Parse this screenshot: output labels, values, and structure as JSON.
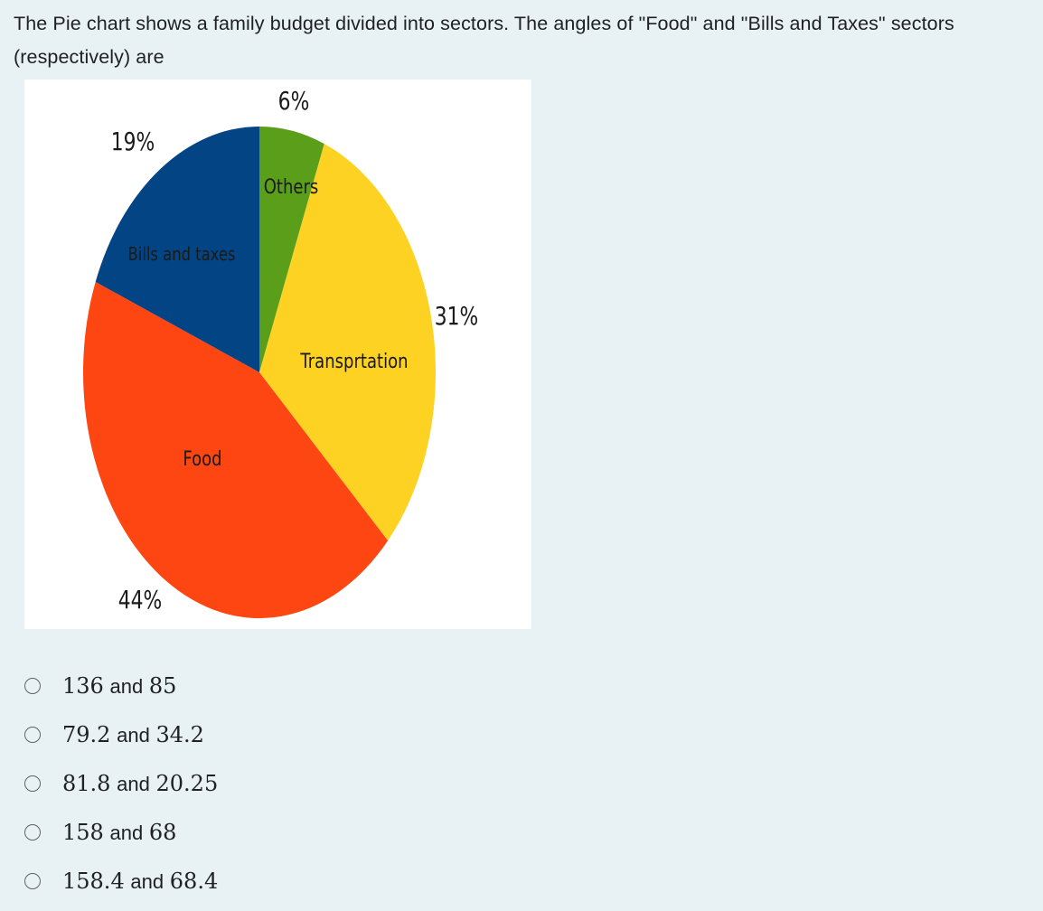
{
  "question": {
    "text": "The Pie chart shows a family budget divided into sectors. The angles of \"Food\" and \"Bills and Taxes\" sectors (respectively) are"
  },
  "chart_data": {
    "type": "pie",
    "slices": [
      {
        "label": "Others",
        "value": 6,
        "value_label": "6%",
        "color": "#5a9e1a"
      },
      {
        "label": "Transprtation",
        "value": 31,
        "value_label": "31%",
        "color": "#fdd223"
      },
      {
        "label": "Food",
        "value": 44,
        "value_label": "44%",
        "color": "#fd4612"
      },
      {
        "label": "Bills and taxes",
        "value": 19,
        "value_label": "19%",
        "color": "#024484"
      }
    ]
  },
  "options": [
    {
      "a": "136",
      "joiner": "and",
      "b": "85"
    },
    {
      "a": "79.2",
      "joiner": "and",
      "b": "34.2"
    },
    {
      "a": "81.8",
      "joiner": "and",
      "b": "20.25"
    },
    {
      "a": "158",
      "joiner": "and",
      "b": "68"
    },
    {
      "a": "158.4",
      "joiner": "and",
      "b": "68.4"
    }
  ]
}
